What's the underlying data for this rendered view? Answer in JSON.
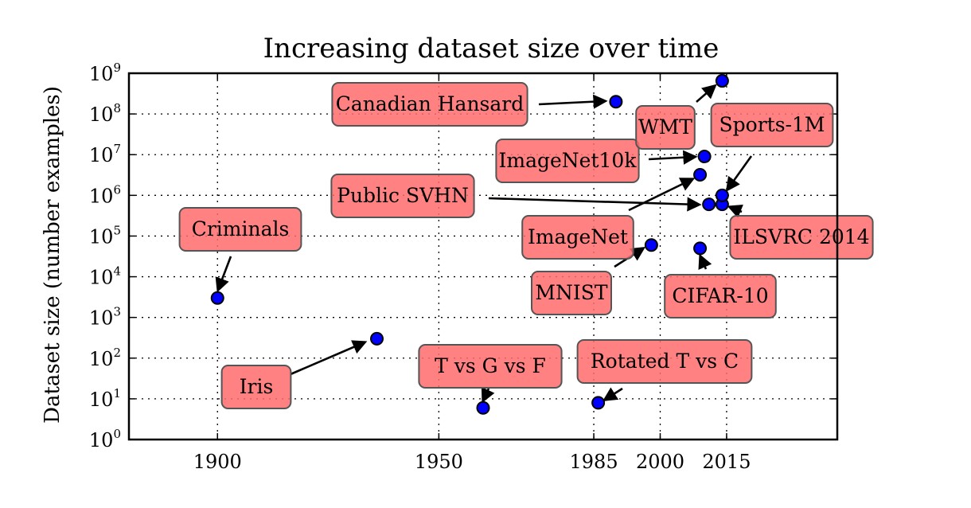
{
  "chart_data": {
    "type": "scatter",
    "title": "Increasing dataset size over time",
    "xlabel": "",
    "ylabel": "Dataset size (number examples)",
    "xlim": [
      1880,
      2040
    ],
    "ylim_log10": [
      0,
      9
    ],
    "y_scale": "log",
    "grid": true,
    "x_ticks": [
      "1900",
      "1950",
      "1985",
      "2000",
      "2015"
    ],
    "x_tick_values": [
      1900,
      1950,
      1985,
      2000,
      2015
    ],
    "y_tick_base": "10",
    "y_tick_exponents": [
      "0",
      "1",
      "2",
      "3",
      "4",
      "5",
      "6",
      "7",
      "8",
      "9"
    ],
    "point_color": "#0000ff",
    "label_box_color": "#ff6b6b",
    "points": [
      {
        "label": "Criminals",
        "x": 1900,
        "y": 3000
      },
      {
        "label": "Iris",
        "x": 1936,
        "y": 300
      },
      {
        "label": "T vs G vs F",
        "x": 1960,
        "y": 6
      },
      {
        "label": "Rotated T vs C",
        "x": 1986,
        "y": 8
      },
      {
        "label": "MNIST",
        "x": 1998,
        "y": 60000
      },
      {
        "label": "Canadian Hansard",
        "x": 1990,
        "y": 200000000
      },
      {
        "label": "ImageNet",
        "x": 2009,
        "y": 3200000
      },
      {
        "label": "CIFAR-10",
        "x": 2009,
        "y": 50000
      },
      {
        "label": "ImageNet10k",
        "x": 2010,
        "y": 9000000
      },
      {
        "label": "Public SVHN",
        "x": 2011,
        "y": 600000
      },
      {
        "label": "ILSVRC 2014",
        "x": 2014,
        "y": 600000
      },
      {
        "label": "Sports-1M",
        "x": 2014,
        "y": 1000000
      },
      {
        "label": "WMT",
        "x": 2014,
        "y": 650000000
      }
    ]
  }
}
